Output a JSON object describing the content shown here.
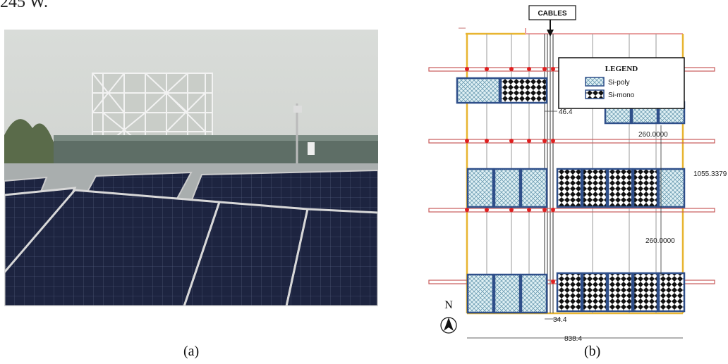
{
  "page": {
    "top_text": "245 W.",
    "caption_a": "(a)",
    "caption_b": "(b)"
  },
  "plan": {
    "cables_label": "CABLES",
    "legend_title": "LEGEND",
    "legend_items": [
      {
        "label": "Si-poly"
      },
      {
        "label": "Si-mono"
      }
    ],
    "dim_46": "46.4",
    "dim_260_a": "260.0000",
    "dim_260_b": "260.0000",
    "dim_1055": "1055.3379",
    "dim_344": "34.4",
    "dim_838": "838.4",
    "north": "N"
  },
  "colors": {
    "frame_orange": "#e8b531",
    "beam_red": "#c85a5a",
    "dot_red": "#e02020",
    "panel_border": "#2f4f8a",
    "poly_fill": "#cfe6ec"
  }
}
